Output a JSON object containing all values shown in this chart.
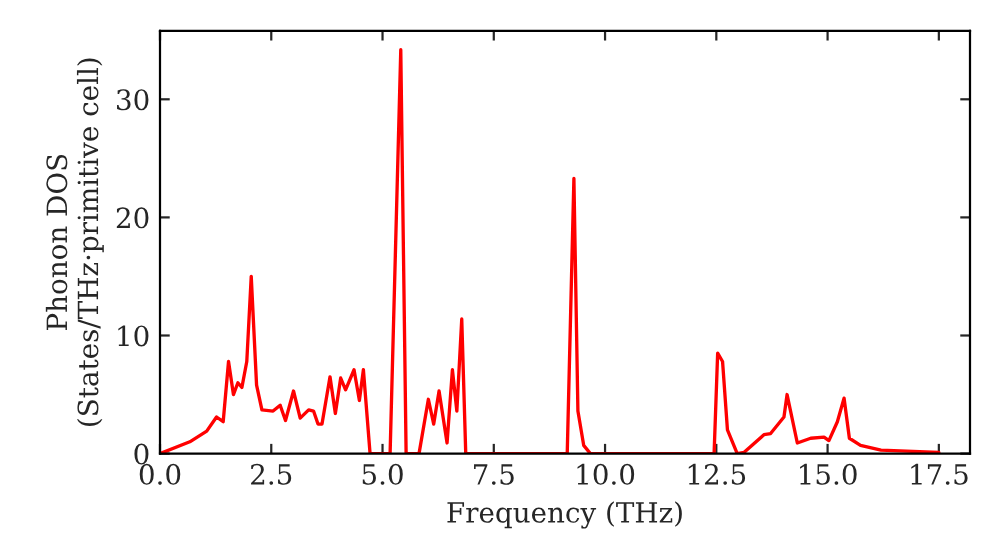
{
  "chart_data": {
    "type": "line",
    "xlabel": "Frequency (THz)",
    "ylabel": "Phonon DOS\n(States/THz·primitive cell)",
    "xlim": [
      0,
      18.2
    ],
    "ylim": [
      0,
      35.8
    ],
    "xticks": [
      {
        "value": 0,
        "label": "0.0"
      },
      {
        "value": 2.5,
        "label": "2.5"
      },
      {
        "value": 5,
        "label": "5.0"
      },
      {
        "value": 7.5,
        "label": "7.5"
      },
      {
        "value": 10,
        "label": "10.0"
      },
      {
        "value": 12.5,
        "label": "12.5"
      },
      {
        "value": 15,
        "label": "15.0"
      },
      {
        "value": 17.5,
        "label": "17.5"
      }
    ],
    "yticks": [
      0,
      10,
      20,
      30
    ],
    "grid": false,
    "legend": false,
    "series": [
      {
        "color": "#ff0000",
        "x": [
          0,
          0.67,
          1.05,
          1.27,
          1.42,
          1.54,
          1.65,
          1.75,
          1.84,
          1.95,
          2.05,
          2.17,
          2.29,
          2.54,
          2.7,
          2.82,
          3.0,
          3.15,
          3.34,
          3.45,
          3.55,
          3.64,
          3.82,
          3.94,
          4.06,
          4.17,
          4.36,
          4.48,
          4.57,
          4.72,
          5.17,
          5.41,
          5.53,
          5.82,
          6.03,
          6.15,
          6.27,
          6.45,
          6.57,
          6.67,
          6.78,
          6.87,
          9.15,
          9.3,
          9.39,
          9.52,
          9.67,
          12.45,
          12.53,
          12.64,
          12.75,
          12.97,
          13.12,
          13.57,
          13.72,
          14.02,
          14.09,
          14.32,
          14.62,
          14.92,
          15.03,
          15.22,
          15.37,
          15.49,
          15.74,
          16.2,
          17.5
        ],
        "values": [
          0,
          1.0,
          1.9,
          3.1,
          2.7,
          7.8,
          5.0,
          6.0,
          5.6,
          7.8,
          15.0,
          5.8,
          3.7,
          3.6,
          4.1,
          2.8,
          5.3,
          3.0,
          3.7,
          3.6,
          2.5,
          2.5,
          6.5,
          3.4,
          6.4,
          5.4,
          7.1,
          4.5,
          7.1,
          0,
          0,
          34.2,
          0,
          0,
          4.6,
          2.5,
          5.3,
          0.9,
          7.1,
          3.6,
          11.4,
          0,
          0,
          23.3,
          3.6,
          0.7,
          0,
          0,
          8.5,
          7.8,
          2.0,
          0,
          0.1,
          1.6,
          1.7,
          3.1,
          5.0,
          0.9,
          1.3,
          1.4,
          1.1,
          2.7,
          4.7,
          1.3,
          0.7,
          0.3,
          0.1
        ]
      }
    ]
  }
}
